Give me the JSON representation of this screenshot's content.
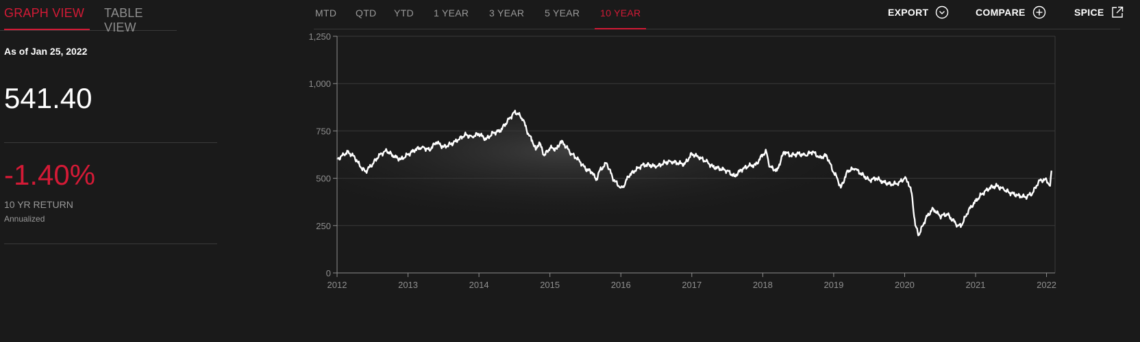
{
  "tabs": {
    "graph_view": "GRAPH VIEW",
    "table_view": "TABLE VIEW"
  },
  "summary": {
    "as_of": "As of Jan 25, 2022",
    "price": "541.40",
    "return_value": "-1.40%",
    "return_label": "10 YR RETURN",
    "return_sub": "Annualized"
  },
  "periods": [
    "MTD",
    "QTD",
    "YTD",
    "1 YEAR",
    "3 YEAR",
    "5 YEAR",
    "10 YEAR"
  ],
  "active_period": "10 YEAR",
  "toolbar": {
    "export": "EXPORT",
    "compare": "COMPARE",
    "spice": "SPICE"
  },
  "icons": {
    "export": "chevron-down-circle-icon",
    "compare": "plus-circle-icon",
    "spice": "external-link-icon"
  },
  "colors": {
    "accent": "#d41a36",
    "background": "#1a1a1a",
    "line": "#ffffff",
    "grid": "#3a3a3a",
    "tick_text": "#8f8f8f"
  },
  "chart_data": {
    "type": "line",
    "title": "",
    "xlabel": "",
    "ylabel": "",
    "ylim": [
      0,
      1250
    ],
    "yticks": [
      0,
      250,
      500,
      750,
      1000,
      1250
    ],
    "yticklabels": [
      "0",
      "250",
      "500",
      "750",
      "1,000",
      "1,250"
    ],
    "xlim": [
      2012.0,
      2022.12
    ],
    "xticks": [
      2012,
      2013,
      2014,
      2015,
      2016,
      2017,
      2018,
      2019,
      2020,
      2021,
      2022
    ],
    "xticklabels": [
      "2012",
      "2013",
      "2014",
      "2015",
      "2016",
      "2017",
      "2018",
      "2019",
      "2020",
      "2021",
      "2022"
    ],
    "grid": "horizontal",
    "series": [
      {
        "x": [
          2012.0,
          2012.1,
          2012.15,
          2012.25,
          2012.33,
          2012.4,
          2012.5,
          2012.6,
          2012.7,
          2012.8,
          2012.9,
          2013.0,
          2013.1,
          2013.2,
          2013.3,
          2013.4,
          2013.5,
          2013.6,
          2013.7,
          2013.8,
          2013.9,
          2014.0,
          2014.1,
          2014.2,
          2014.3,
          2014.4,
          2014.5,
          2014.55,
          2014.62,
          2014.7,
          2014.75,
          2014.8,
          2014.85,
          2014.92,
          2015.0,
          2015.1,
          2015.15,
          2015.2,
          2015.3,
          2015.4,
          2015.5,
          2015.6,
          2015.65,
          2015.7,
          2015.8,
          2015.9,
          2016.0,
          2016.05,
          2016.1,
          2016.2,
          2016.3,
          2016.4,
          2016.5,
          2016.6,
          2016.7,
          2016.8,
          2016.9,
          2017.0,
          2017.1,
          2017.2,
          2017.3,
          2017.4,
          2017.5,
          2017.6,
          2017.7,
          2017.8,
          2017.9,
          2018.0,
          2018.05,
          2018.1,
          2018.2,
          2018.3,
          2018.4,
          2018.5,
          2018.6,
          2018.7,
          2018.8,
          2018.9,
          2019.0,
          2019.05,
          2019.1,
          2019.2,
          2019.3,
          2019.4,
          2019.5,
          2019.6,
          2019.7,
          2019.8,
          2019.9,
          2020.0,
          2020.05,
          2020.1,
          2020.15,
          2020.2,
          2020.3,
          2020.4,
          2020.5,
          2020.6,
          2020.7,
          2020.75,
          2020.8,
          2020.9,
          2021.0,
          2021.1,
          2021.2,
          2021.3,
          2021.4,
          2021.5,
          2021.6,
          2021.7,
          2021.8,
          2021.9,
          2022.0,
          2022.05,
          2022.07
        ],
        "y": [
          600,
          625,
          640,
          610,
          560,
          535,
          575,
          625,
          645,
          615,
          600,
          625,
          650,
          665,
          650,
          690,
          665,
          680,
          700,
          730,
          720,
          735,
          705,
          740,
          750,
          800,
          850,
          840,
          810,
          730,
          700,
          650,
          690,
          620,
          660,
          655,
          695,
          680,
          630,
          600,
          550,
          530,
          490,
          540,
          580,
          490,
          450,
          460,
          510,
          540,
          570,
          570,
          560,
          580,
          590,
          580,
          575,
          630,
          610,
          590,
          560,
          550,
          540,
          510,
          545,
          565,
          570,
          625,
          640,
          560,
          540,
          640,
          620,
          630,
          620,
          640,
          610,
          620,
          530,
          500,
          450,
          540,
          550,
          520,
          490,
          500,
          480,
          470,
          470,
          500,
          480,
          420,
          250,
          200,
          290,
          340,
          300,
          310,
          270,
          250,
          250,
          330,
          380,
          420,
          450,
          460,
          440,
          420,
          410,
          400,
          420,
          490,
          490,
          460,
          540
        ]
      }
    ]
  }
}
